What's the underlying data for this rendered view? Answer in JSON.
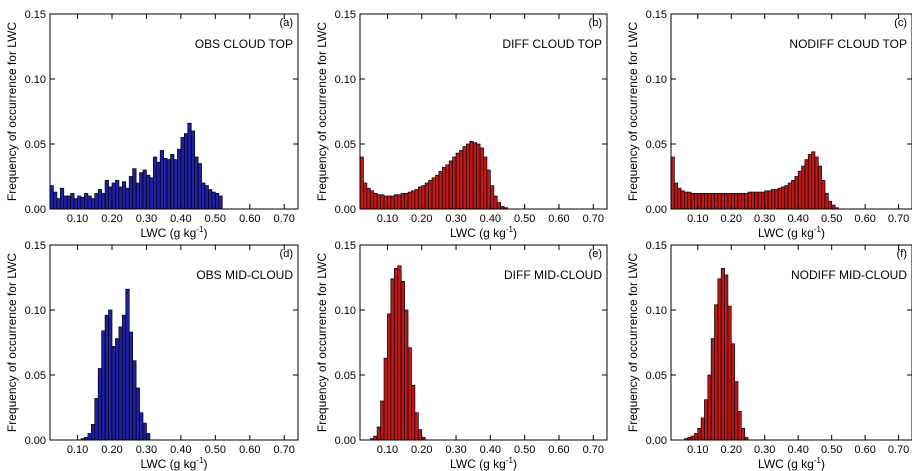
{
  "figure": {
    "ylabel": "Frequency of occurrence for LWC",
    "xlabel_base": "LWC (g kg",
    "xlabel_sup": "-1",
    "xlabel_end": ")"
  },
  "chart_data": [
    {
      "type": "bar",
      "panel_label": "(a)",
      "title": "OBS CLOUD TOP",
      "color": "#1f1fa8",
      "xlabel": "LWC (g kg-1)",
      "ylabel": "Frequency of occurrence for LWC",
      "xlim": [
        0.02,
        0.74
      ],
      "ylim": [
        0,
        0.15
      ],
      "xticks": [
        "0.10",
        "0.20",
        "0.30",
        "0.40",
        "0.50",
        "0.60",
        "0.70"
      ],
      "yticks": [
        "0.00",
        "0.05",
        "0.10",
        "0.15"
      ],
      "bin_start": 0.02,
      "bin_width": 0.01,
      "values": [
        0.018,
        0.013,
        0.008,
        0.016,
        0.01,
        0.01,
        0.012,
        0.008,
        0.01,
        0.009,
        0.012,
        0.01,
        0.008,
        0.012,
        0.015,
        0.012,
        0.022,
        0.017,
        0.02,
        0.022,
        0.017,
        0.021,
        0.016,
        0.025,
        0.031,
        0.02,
        0.028,
        0.03,
        0.026,
        0.024,
        0.04,
        0.036,
        0.045,
        0.039,
        0.038,
        0.042,
        0.038,
        0.046,
        0.055,
        0.058,
        0.066,
        0.06,
        0.04,
        0.035,
        0.02,
        0.018,
        0.015,
        0.013,
        0.012,
        0.01
      ]
    },
    {
      "type": "bar",
      "panel_label": "(b)",
      "title": "DIFF CLOUD TOP",
      "color": "#c01818",
      "xlabel": "LWC (g kg-1)",
      "ylabel": "Frequency of occurrence for LWC",
      "xlim": [
        0.02,
        0.74
      ],
      "ylim": [
        0,
        0.15
      ],
      "xticks": [
        "0.10",
        "0.20",
        "0.30",
        "0.40",
        "0.50",
        "0.60",
        "0.70"
      ],
      "yticks": [
        "0.00",
        "0.05",
        "0.10",
        "0.15"
      ],
      "bin_start": 0.02,
      "bin_width": 0.01,
      "values": [
        0.04,
        0.02,
        0.016,
        0.014,
        0.012,
        0.011,
        0.011,
        0.01,
        0.01,
        0.01,
        0.011,
        0.011,
        0.012,
        0.012,
        0.013,
        0.014,
        0.015,
        0.017,
        0.018,
        0.02,
        0.022,
        0.024,
        0.026,
        0.029,
        0.032,
        0.034,
        0.037,
        0.04,
        0.043,
        0.045,
        0.048,
        0.05,
        0.052,
        0.051,
        0.05,
        0.047,
        0.04,
        0.03,
        0.018,
        0.01,
        0.005,
        0.002,
        0.001
      ]
    },
    {
      "type": "bar",
      "panel_label": "(c)",
      "title": "NODIFF CLOUD TOP",
      "color": "#c01818",
      "xlabel": "LWC (g kg-1)",
      "ylabel": "Frequency of occurrence for LWC",
      "xlim": [
        0.02,
        0.74
      ],
      "ylim": [
        0,
        0.15
      ],
      "xticks": [
        "0.10",
        "0.20",
        "0.30",
        "0.40",
        "0.50",
        "0.60",
        "0.70"
      ],
      "yticks": [
        "0.00",
        "0.05",
        "0.10",
        "0.15"
      ],
      "bin_start": 0.02,
      "bin_width": 0.01,
      "values": [
        0.04,
        0.02,
        0.016,
        0.014,
        0.013,
        0.013,
        0.012,
        0.012,
        0.012,
        0.012,
        0.012,
        0.012,
        0.012,
        0.012,
        0.012,
        0.012,
        0.012,
        0.012,
        0.012,
        0.012,
        0.012,
        0.012,
        0.012,
        0.013,
        0.013,
        0.013,
        0.013,
        0.013,
        0.014,
        0.014,
        0.015,
        0.015,
        0.016,
        0.017,
        0.018,
        0.02,
        0.022,
        0.025,
        0.029,
        0.033,
        0.038,
        0.042,
        0.044,
        0.04,
        0.033,
        0.022,
        0.012,
        0.006,
        0.003,
        0.001
      ]
    },
    {
      "type": "bar",
      "panel_label": "(d)",
      "title": "OBS MID-CLOUD",
      "color": "#1f1fa8",
      "xlabel": "LWC (g kg-1)",
      "ylabel": "Frequency of occurrence for LWC",
      "xlim": [
        0.02,
        0.74
      ],
      "ylim": [
        0,
        0.15
      ],
      "xticks": [
        "0.10",
        "0.20",
        "0.30",
        "0.40",
        "0.50",
        "0.60",
        "0.70"
      ],
      "yticks": [
        "0.00",
        "0.05",
        "0.10",
        "0.15"
      ],
      "bin_start": 0.11,
      "bin_width": 0.01,
      "values": [
        0.001,
        0.002,
        0.005,
        0.012,
        0.032,
        0.055,
        0.084,
        0.096,
        0.1,
        0.072,
        0.078,
        0.087,
        0.096,
        0.116,
        0.083,
        0.061,
        0.04,
        0.021,
        0.013,
        0.005
      ]
    },
    {
      "type": "bar",
      "panel_label": "(e)",
      "title": "DIFF MID-CLOUD",
      "color": "#c01818",
      "xlabel": "LWC (g kg-1)",
      "ylabel": "Frequency of occurrence for LWC",
      "xlim": [
        0.02,
        0.74
      ],
      "ylim": [
        0,
        0.15
      ],
      "xticks": [
        "0.10",
        "0.20",
        "0.30",
        "0.40",
        "0.50",
        "0.60",
        "0.70"
      ],
      "yticks": [
        "0.00",
        "0.05",
        "0.10",
        "0.15"
      ],
      "bin_start": 0.05,
      "bin_width": 0.01,
      "values": [
        0.001,
        0.003,
        0.01,
        0.03,
        0.063,
        0.097,
        0.124,
        0.132,
        0.134,
        0.122,
        0.1,
        0.071,
        0.042,
        0.021,
        0.008,
        0.002
      ]
    },
    {
      "type": "bar",
      "panel_label": "(f)",
      "title": "NODIFF MID-CLOUD",
      "color": "#c01818",
      "xlabel": "LWC (g kg-1)",
      "ylabel": "Frequency of occurrence for LWC",
      "xlim": [
        0.02,
        0.74
      ],
      "ylim": [
        0,
        0.15
      ],
      "xticks": [
        "0.10",
        "0.20",
        "0.30",
        "0.40",
        "0.50",
        "0.60",
        "0.70"
      ],
      "yticks": [
        "0.00",
        "0.05",
        "0.10",
        "0.15"
      ],
      "bin_start": 0.06,
      "bin_width": 0.01,
      "values": [
        0.001,
        0.002,
        0.003,
        0.005,
        0.009,
        0.017,
        0.031,
        0.05,
        0.078,
        0.104,
        0.124,
        0.132,
        0.127,
        0.103,
        0.074,
        0.045,
        0.022,
        0.009,
        0.002
      ]
    }
  ]
}
